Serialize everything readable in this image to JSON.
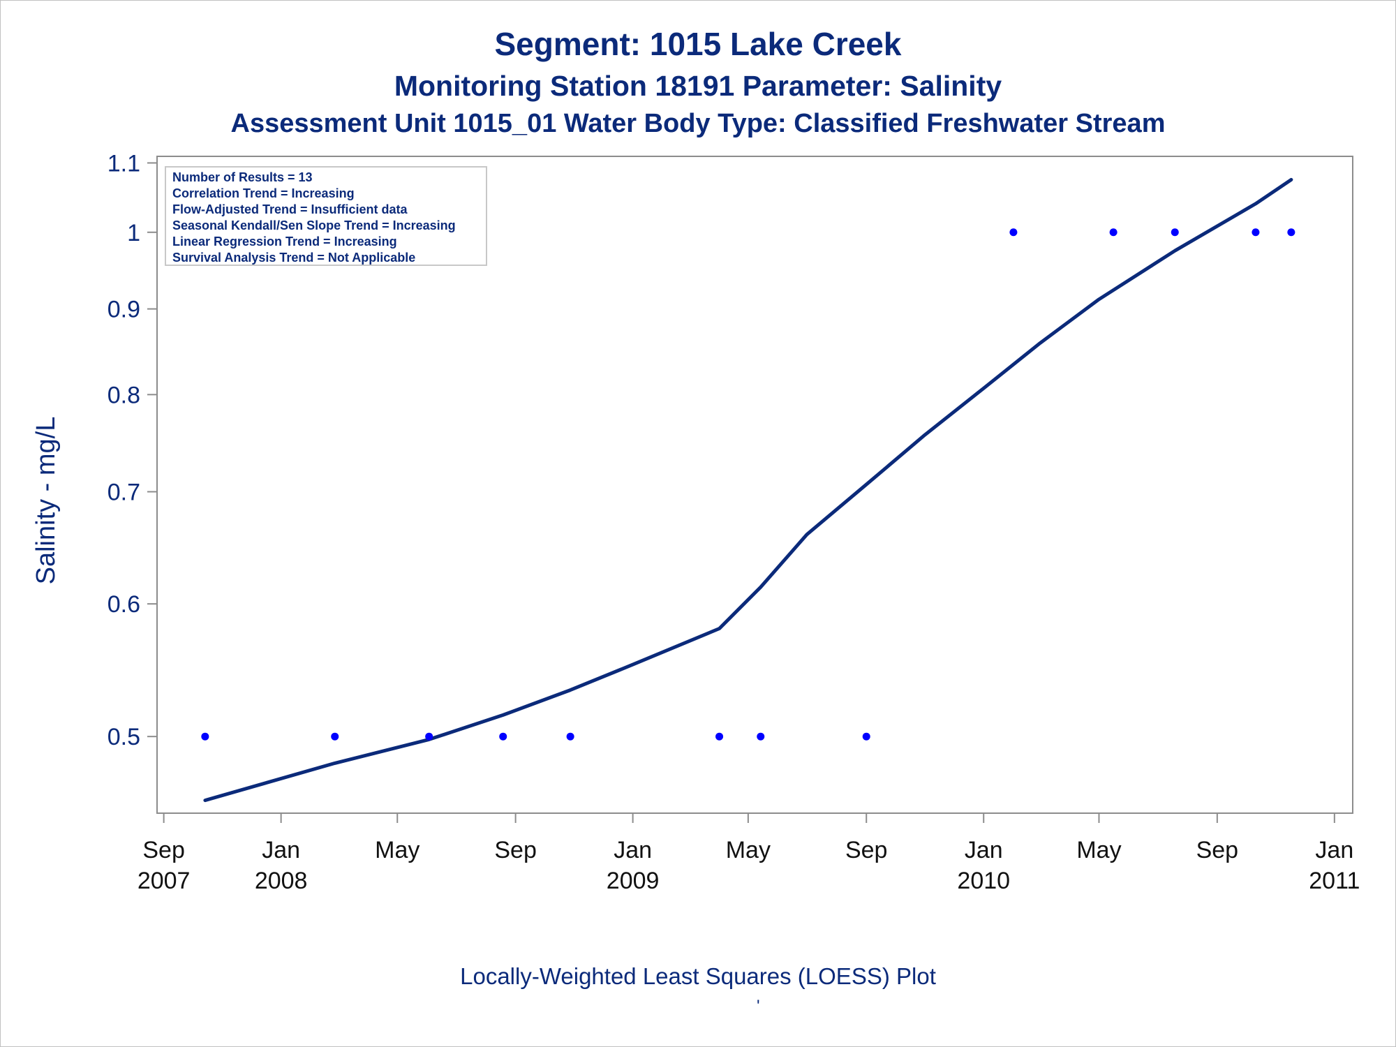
{
  "chart_data": {
    "type": "scatter",
    "title": "Segment: 1015  Lake Creek",
    "subtitle": "Monitoring Station 18191 Parameter: Salinity",
    "subtitle2": "Assessment Unit 1015_01   Water Body Type: Classified Freshwater Stream",
    "ylabel": "Salinity - mg/L",
    "xlabel": "",
    "footnote": "Locally-Weighted Least Squares (LOESS) Plot",
    "footnote_mark": "'",
    "y_scale": "log",
    "ylim": [
      0.45,
      1.11
    ],
    "xlim": [
      "2007-08-25",
      "2011-01-20"
    ],
    "y_ticks": [
      {
        "value": 0.5,
        "label": "0.5"
      },
      {
        "value": 0.6,
        "label": "0.6"
      },
      {
        "value": 0.7,
        "label": "0.7"
      },
      {
        "value": 0.8,
        "label": "0.8"
      },
      {
        "value": 0.9,
        "label": "0.9"
      },
      {
        "value": 1.0,
        "label": "1"
      },
      {
        "value": 1.1,
        "label": "1.1"
      }
    ],
    "x_ticks": [
      {
        "date": "2007-09-01",
        "line1": "Sep",
        "line2": "2007"
      },
      {
        "date": "2008-01-01",
        "line1": "Jan",
        "line2": "2008"
      },
      {
        "date": "2008-05-01",
        "line1": "May",
        "line2": ""
      },
      {
        "date": "2008-09-01",
        "line1": "Sep",
        "line2": ""
      },
      {
        "date": "2009-01-01",
        "line1": "Jan",
        "line2": "2009"
      },
      {
        "date": "2009-05-01",
        "line1": "May",
        "line2": ""
      },
      {
        "date": "2009-09-01",
        "line1": "Sep",
        "line2": ""
      },
      {
        "date": "2010-01-01",
        "line1": "Jan",
        "line2": "2010"
      },
      {
        "date": "2010-05-01",
        "line1": "May",
        "line2": ""
      },
      {
        "date": "2010-09-01",
        "line1": "Sep",
        "line2": ""
      },
      {
        "date": "2011-01-01",
        "line1": "Jan",
        "line2": "2011"
      }
    ],
    "grid": false,
    "stats_box": {
      "placement": "top-left",
      "lines": [
        "Number of Results = 13",
        "Correlation Trend = Increasing",
        "Flow-Adjusted Trend = Insufficient data",
        "Seasonal Kendall/Sen Slope Trend = Increasing",
        "Linear Regression Trend = Increasing",
        "Survival Analysis Trend = Not Applicable"
      ]
    },
    "series": [
      {
        "type": "scatter",
        "color": "#0000ff",
        "points": [
          {
            "x": "2007-10-14",
            "y": 0.5
          },
          {
            "x": "2008-02-26",
            "y": 0.5
          },
          {
            "x": "2008-06-03",
            "y": 0.5
          },
          {
            "x": "2008-08-19",
            "y": 0.5
          },
          {
            "x": "2008-10-28",
            "y": 0.5
          },
          {
            "x": "2009-04-01",
            "y": 0.5
          },
          {
            "x": "2009-05-14",
            "y": 0.5
          },
          {
            "x": "2009-09-01",
            "y": 0.5
          },
          {
            "x": "2010-02-01",
            "y": 1.0
          },
          {
            "x": "2010-05-16",
            "y": 1.0
          },
          {
            "x": "2010-07-19",
            "y": 1.0
          },
          {
            "x": "2010-10-11",
            "y": 1.0
          },
          {
            "x": "2010-11-17",
            "y": 1.0
          }
        ]
      },
      {
        "type": "line",
        "color": "#0b2a7a",
        "points": [
          {
            "x": "2007-10-14",
            "y": 0.458
          },
          {
            "x": "2008-02-26",
            "y": 0.482
          },
          {
            "x": "2008-06-03",
            "y": 0.498
          },
          {
            "x": "2008-08-19",
            "y": 0.515
          },
          {
            "x": "2008-10-28",
            "y": 0.533
          },
          {
            "x": "2009-01-01",
            "y": 0.552
          },
          {
            "x": "2009-04-01",
            "y": 0.58
          },
          {
            "x": "2009-05-14",
            "y": 0.614
          },
          {
            "x": "2009-07-01",
            "y": 0.66
          },
          {
            "x": "2009-09-01",
            "y": 0.707
          },
          {
            "x": "2009-11-01",
            "y": 0.757
          },
          {
            "x": "2010-01-01",
            "y": 0.807
          },
          {
            "x": "2010-03-01",
            "y": 0.859
          },
          {
            "x": "2010-05-01",
            "y": 0.912
          },
          {
            "x": "2010-07-19",
            "y": 0.975
          },
          {
            "x": "2010-10-11",
            "y": 1.04
          },
          {
            "x": "2010-11-17",
            "y": 1.075
          }
        ]
      }
    ]
  },
  "colors": {
    "text": "#0b2a7a",
    "points": "#0000ff",
    "line": "#0b2a7a",
    "axis": "#8c8c8c"
  }
}
